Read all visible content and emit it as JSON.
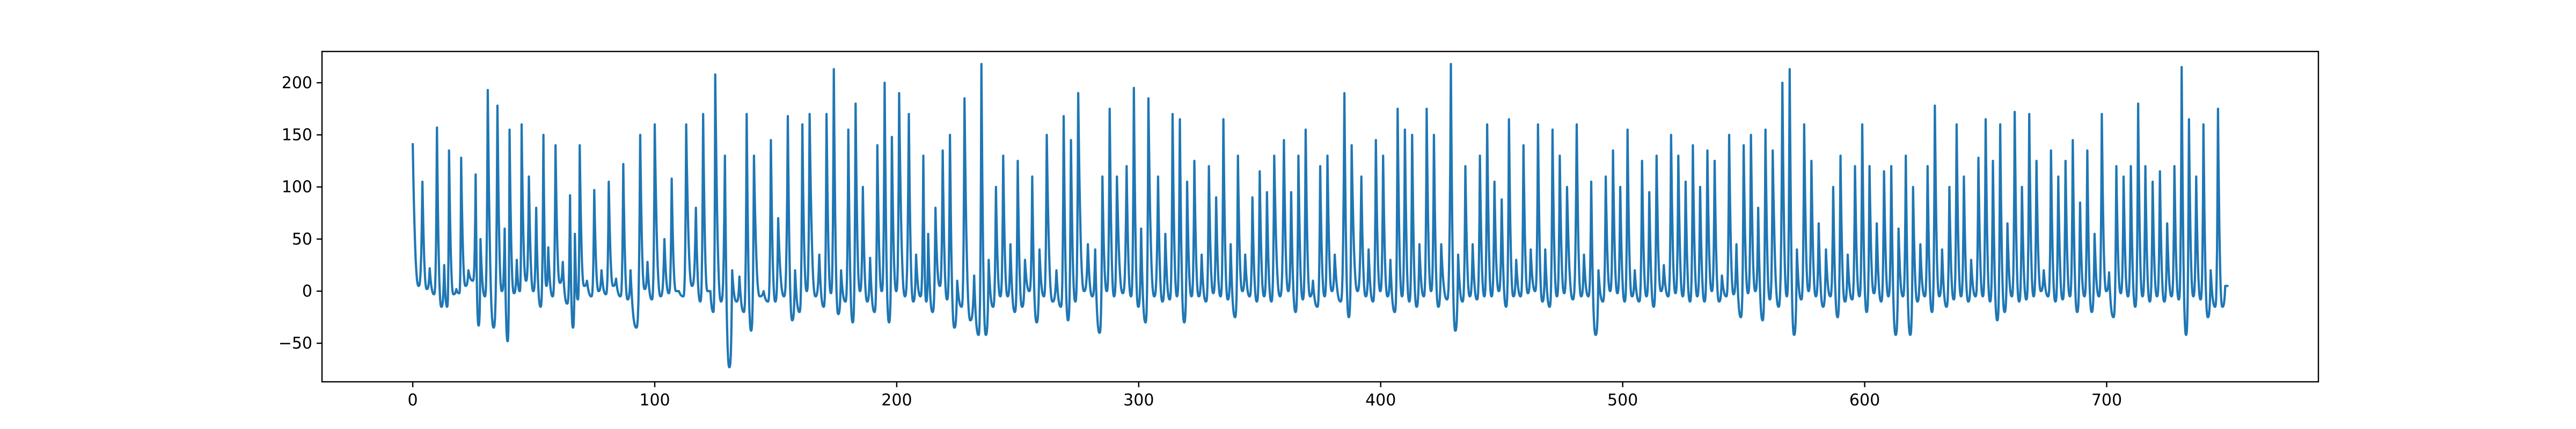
{
  "chart_data": {
    "type": "line",
    "title": "",
    "xlabel": "",
    "ylabel": "",
    "xlim": [
      -37.5,
      787.5
    ],
    "ylim": [
      -87,
      230
    ],
    "xticks": [
      0,
      100,
      200,
      300,
      400,
      500,
      600,
      700
    ],
    "xtick_labels": [
      "0",
      "100",
      "200",
      "300",
      "400",
      "500",
      "600",
      "700"
    ],
    "yticks": [
      -50,
      0,
      50,
      100,
      150,
      200
    ],
    "ytick_labels": [
      "−50",
      "0",
      "50",
      "100",
      "150",
      "200"
    ],
    "grid": false,
    "legend": "none",
    "colors": {
      "series": "#1f77b4",
      "axes": "#000000",
      "background": "#ffffff"
    },
    "series": [
      {
        "peaks": [
          [
            0,
            142,
            5
          ],
          [
            4,
            105,
            2
          ],
          [
            7,
            22,
            -3
          ],
          [
            10,
            157,
            -15
          ],
          [
            13,
            25,
            -15
          ],
          [
            15,
            135,
            -3
          ],
          [
            18,
            2,
            -2
          ],
          [
            20,
            128,
            5
          ],
          [
            23,
            20,
            10
          ],
          [
            26,
            112,
            -33
          ],
          [
            28,
            50,
            -5
          ],
          [
            31,
            193,
            -35
          ],
          [
            35,
            178,
            0
          ],
          [
            38,
            60,
            -48
          ],
          [
            40,
            155,
            -2
          ],
          [
            43,
            30,
            0
          ],
          [
            45,
            160,
            10
          ],
          [
            48,
            110,
            0
          ],
          [
            51,
            80,
            -15
          ],
          [
            54,
            150,
            5
          ],
          [
            56,
            42,
            -5
          ],
          [
            59,
            140,
            8
          ],
          [
            62,
            28,
            -12
          ],
          [
            65,
            92,
            -35
          ],
          [
            67,
            55,
            -8
          ],
          [
            69,
            140,
            5
          ],
          [
            72,
            10,
            -5
          ],
          [
            75,
            97,
            0
          ],
          [
            78,
            20,
            -3
          ],
          [
            81,
            105,
            5
          ],
          [
            84,
            12,
            -5
          ],
          [
            87,
            122,
            -8
          ],
          [
            90,
            20,
            -35
          ],
          [
            94,
            150,
            2
          ],
          [
            97,
            28,
            -8
          ],
          [
            100,
            160,
            -5
          ],
          [
            104,
            50,
            -2
          ],
          [
            107,
            108,
            0
          ],
          [
            110,
            0,
            -5
          ],
          [
            113,
            160,
            5
          ],
          [
            117,
            80,
            -10
          ],
          [
            120,
            170,
            0
          ],
          [
            123,
            0,
            -20
          ],
          [
            125,
            208,
            -10
          ],
          [
            129,
            130,
            -73
          ],
          [
            132,
            20,
            -10
          ],
          [
            135,
            14,
            -20
          ],
          [
            138,
            170,
            -38
          ],
          [
            141,
            130,
            -5
          ],
          [
            145,
            0,
            -10
          ],
          [
            148,
            145,
            -10
          ],
          [
            151,
            70,
            -5
          ],
          [
            155,
            168,
            -28
          ],
          [
            158,
            20,
            -20
          ],
          [
            161,
            160,
            0
          ],
          [
            164,
            170,
            -5
          ],
          [
            168,
            35,
            -15
          ],
          [
            171,
            170,
            -2
          ],
          [
            174,
            213,
            -22
          ],
          [
            177,
            20,
            -10
          ],
          [
            180,
            155,
            -30
          ],
          [
            183,
            180,
            0
          ],
          [
            186,
            100,
            -10
          ],
          [
            189,
            32,
            -20
          ],
          [
            192,
            140,
            0
          ],
          [
            195,
            200,
            -30
          ],
          [
            198,
            148,
            0
          ],
          [
            201,
            190,
            -5
          ],
          [
            205,
            170,
            -10
          ],
          [
            208,
            35,
            -5
          ],
          [
            211,
            130,
            -10
          ],
          [
            213,
            55,
            -20
          ],
          [
            216,
            80,
            5
          ],
          [
            219,
            135,
            -8
          ],
          [
            222,
            150,
            -35
          ],
          [
            225,
            10,
            -15
          ],
          [
            228,
            185,
            -28
          ],
          [
            232,
            15,
            -42
          ],
          [
            235,
            218,
            -42
          ],
          [
            238,
            30,
            -15
          ],
          [
            241,
            100,
            -5
          ],
          [
            244,
            130,
            -5
          ],
          [
            247,
            45,
            -20
          ],
          [
            250,
            125,
            -15
          ],
          [
            253,
            30,
            0
          ],
          [
            256,
            110,
            -30
          ],
          [
            259,
            40,
            -5
          ],
          [
            262,
            150,
            -10
          ],
          [
            266,
            20,
            -15
          ],
          [
            269,
            168,
            -28
          ],
          [
            272,
            145,
            -10
          ],
          [
            275,
            190,
            0
          ],
          [
            279,
            45,
            -5
          ],
          [
            282,
            40,
            -40
          ],
          [
            285,
            110,
            0
          ],
          [
            288,
            175,
            -5
          ],
          [
            291,
            110,
            -2
          ],
          [
            295,
            120,
            -5
          ],
          [
            298,
            195,
            -15
          ],
          [
            301,
            60,
            -30
          ],
          [
            304,
            185,
            -5
          ],
          [
            308,
            110,
            -10
          ],
          [
            311,
            55,
            -8
          ],
          [
            314,
            170,
            -5
          ],
          [
            317,
            165,
            -30
          ],
          [
            320,
            105,
            -5
          ],
          [
            323,
            125,
            -5
          ],
          [
            326,
            35,
            -10
          ],
          [
            329,
            120,
            -2
          ],
          [
            332,
            90,
            -5
          ],
          [
            335,
            165,
            -8
          ],
          [
            338,
            45,
            -25
          ],
          [
            341,
            130,
            0
          ],
          [
            344,
            35,
            -5
          ],
          [
            347,
            90,
            -10
          ],
          [
            350,
            115,
            -5
          ],
          [
            353,
            95,
            -10
          ],
          [
            356,
            130,
            -5
          ],
          [
            360,
            145,
            0
          ],
          [
            363,
            95,
            -20
          ],
          [
            366,
            130,
            -8
          ],
          [
            369,
            155,
            -5
          ],
          [
            372,
            10,
            -15
          ],
          [
            375,
            120,
            -5
          ],
          [
            378,
            130,
            0
          ],
          [
            381,
            35,
            -10
          ],
          [
            385,
            190,
            -25
          ],
          [
            388,
            140,
            0
          ],
          [
            392,
            110,
            -5
          ],
          [
            395,
            40,
            -10
          ],
          [
            398,
            145,
            0
          ],
          [
            401,
            130,
            -5
          ],
          [
            404,
            30,
            -20
          ],
          [
            407,
            175,
            -5
          ],
          [
            410,
            155,
            -10
          ],
          [
            413,
            150,
            -15
          ],
          [
            416,
            45,
            -5
          ],
          [
            419,
            175,
            0
          ],
          [
            422,
            150,
            -15
          ],
          [
            425,
            45,
            -8
          ],
          [
            429,
            218,
            -38
          ],
          [
            432,
            35,
            -10
          ],
          [
            435,
            120,
            -5
          ],
          [
            438,
            45,
            -8
          ],
          [
            441,
            130,
            -5
          ],
          [
            444,
            160,
            -5
          ],
          [
            447,
            105,
            0
          ],
          [
            450,
            88,
            -15
          ],
          [
            453,
            165,
            -5
          ],
          [
            456,
            30,
            -5
          ],
          [
            459,
            140,
            -2
          ],
          [
            462,
            40,
            0
          ],
          [
            465,
            160,
            -10
          ],
          [
            468,
            40,
            -15
          ],
          [
            471,
            155,
            -5
          ],
          [
            474,
            130,
            -2
          ],
          [
            477,
            100,
            -8
          ],
          [
            481,
            160,
            -5
          ],
          [
            484,
            35,
            -5
          ],
          [
            487,
            105,
            -42
          ],
          [
            490,
            20,
            -10
          ],
          [
            493,
            110,
            0
          ],
          [
            496,
            135,
            -2
          ],
          [
            499,
            100,
            -10
          ],
          [
            502,
            155,
            -5
          ],
          [
            505,
            20,
            -10
          ],
          [
            508,
            125,
            -5
          ],
          [
            511,
            95,
            -15
          ],
          [
            514,
            130,
            0
          ],
          [
            517,
            25,
            -5
          ],
          [
            520,
            150,
            -2
          ],
          [
            523,
            130,
            -5
          ],
          [
            526,
            105,
            -10
          ],
          [
            529,
            140,
            -5
          ],
          [
            532,
            100,
            -10
          ],
          [
            535,
            135,
            0
          ],
          [
            538,
            125,
            -10
          ],
          [
            541,
            15,
            -5
          ],
          [
            544,
            150,
            -3
          ],
          [
            547,
            45,
            -25
          ],
          [
            550,
            140,
            -2
          ],
          [
            553,
            150,
            0
          ],
          [
            556,
            80,
            -28
          ],
          [
            559,
            155,
            -8
          ],
          [
            562,
            135,
            -15
          ],
          [
            566,
            200,
            -5
          ],
          [
            569,
            213,
            -42
          ],
          [
            572,
            40,
            -8
          ],
          [
            575,
            160,
            0
          ],
          [
            578,
            125,
            -5
          ],
          [
            581,
            65,
            -15
          ],
          [
            584,
            40,
            -5
          ],
          [
            587,
            100,
            -25
          ],
          [
            590,
            130,
            -10
          ],
          [
            593,
            35,
            -8
          ],
          [
            596,
            120,
            -5
          ],
          [
            599,
            160,
            -20
          ],
          [
            602,
            120,
            -2
          ],
          [
            605,
            65,
            -10
          ],
          [
            608,
            115,
            -5
          ],
          [
            611,
            120,
            -42
          ],
          [
            614,
            60,
            -5
          ],
          [
            617,
            130,
            -42
          ],
          [
            620,
            100,
            -10
          ],
          [
            623,
            45,
            -5
          ],
          [
            626,
            120,
            -20
          ],
          [
            629,
            178,
            -5
          ],
          [
            632,
            40,
            -15
          ],
          [
            635,
            100,
            -8
          ],
          [
            638,
            160,
            -5
          ],
          [
            641,
            110,
            -10
          ],
          [
            644,
            30,
            -5
          ],
          [
            647,
            128,
            -5
          ],
          [
            650,
            165,
            -10
          ],
          [
            653,
            125,
            -28
          ],
          [
            656,
            160,
            -20
          ],
          [
            659,
            65,
            -5
          ],
          [
            662,
            172,
            -10
          ],
          [
            665,
            100,
            -8
          ],
          [
            668,
            170,
            -5
          ],
          [
            671,
            125,
            0
          ],
          [
            674,
            20,
            -5
          ],
          [
            677,
            135,
            -10
          ],
          [
            680,
            110,
            -8
          ],
          [
            683,
            125,
            -5
          ],
          [
            686,
            145,
            -20
          ],
          [
            689,
            85,
            -5
          ],
          [
            692,
            135,
            -20
          ],
          [
            695,
            55,
            -5
          ],
          [
            698,
            170,
            0
          ],
          [
            701,
            18,
            -25
          ],
          [
            704,
            120,
            -2
          ],
          [
            707,
            110,
            -5
          ],
          [
            710,
            120,
            -15
          ],
          [
            713,
            180,
            -5
          ],
          [
            716,
            120,
            -10
          ],
          [
            719,
            105,
            -5
          ],
          [
            722,
            115,
            -10
          ],
          [
            725,
            65,
            -5
          ],
          [
            728,
            120,
            -8
          ],
          [
            731,
            215,
            -42
          ],
          [
            734,
            165,
            -5
          ],
          [
            737,
            110,
            -8
          ],
          [
            740,
            160,
            -25
          ],
          [
            743,
            20,
            -15
          ],
          [
            746,
            175,
            -15
          ],
          [
            749,
            5,
            5
          ]
        ]
      }
    ]
  }
}
